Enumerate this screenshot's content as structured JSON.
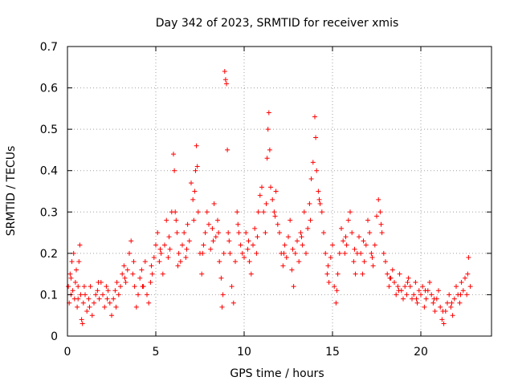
{
  "chart_data": {
    "type": "scatter",
    "title": "Day 342 of 2023, SRMTID for receiver xmis",
    "xlabel": "GPS time / hours",
    "ylabel": "SRMTID / TECUs",
    "xlim": [
      0,
      24.0
    ],
    "ylim": [
      0,
      0.7
    ],
    "xticks": [
      0,
      5,
      10,
      15,
      20
    ],
    "yticks": [
      0,
      0.1,
      0.2,
      0.3,
      0.4,
      0.5,
      0.6,
      0.7
    ],
    "grid": true,
    "marker": "plus",
    "color": "#ff0000",
    "series": [
      {
        "name": "SRMTID",
        "points": [
          [
            0.05,
            0.12
          ],
          [
            0.1,
            0.08
          ],
          [
            0.15,
            0.15
          ],
          [
            0.2,
            0.1
          ],
          [
            0.25,
            0.18
          ],
          [
            0.3,
            0.11
          ],
          [
            0.35,
            0.2
          ],
          [
            0.4,
            0.09
          ],
          [
            0.45,
            0.13
          ],
          [
            0.5,
            0.16
          ],
          [
            0.55,
            0.07
          ],
          [
            0.6,
            0.12
          ],
          [
            0.65,
            0.18
          ],
          [
            0.7,
            0.22
          ],
          [
            0.75,
            0.1
          ],
          [
            0.8,
            0.04
          ],
          [
            0.85,
            0.03
          ],
          [
            0.9,
            0.08
          ],
          [
            0.95,
            0.12
          ],
          [
            1.0,
            0.1
          ],
          [
            1.1,
            0.06
          ],
          [
            1.2,
            0.09
          ],
          [
            1.3,
            0.12
          ],
          [
            1.4,
            0.05
          ],
          [
            1.5,
            0.08
          ],
          [
            1.6,
            0.1
          ],
          [
            1.7,
            0.11
          ],
          [
            1.8,
            0.09
          ],
          [
            1.9,
            0.13
          ],
          [
            2.0,
            0.1
          ],
          [
            2.1,
            0.07
          ],
          [
            2.2,
            0.12
          ],
          [
            2.3,
            0.11
          ],
          [
            2.4,
            0.08
          ],
          [
            2.5,
            0.05
          ],
          [
            2.6,
            0.09
          ],
          [
            2.7,
            0.11
          ],
          [
            2.8,
            0.13
          ],
          [
            2.9,
            0.1
          ],
          [
            3.0,
            0.12
          ],
          [
            3.1,
            0.15
          ],
          [
            3.2,
            0.17
          ],
          [
            3.3,
            0.13
          ],
          [
            3.4,
            0.16
          ],
          [
            3.5,
            0.2
          ],
          [
            3.6,
            0.23
          ],
          [
            3.7,
            0.15
          ],
          [
            3.8,
            0.12
          ],
          [
            3.9,
            0.07
          ],
          [
            4.0,
            0.1
          ],
          [
            4.1,
            0.14
          ],
          [
            4.2,
            0.16
          ],
          [
            4.3,
            0.12
          ],
          [
            4.4,
            0.18
          ],
          [
            4.5,
            0.1
          ],
          [
            4.6,
            0.08
          ],
          [
            4.7,
            0.13
          ],
          [
            4.8,
            0.15
          ],
          [
            4.9,
            0.19
          ],
          [
            5.0,
            0.22
          ],
          [
            5.1,
            0.25
          ],
          [
            5.2,
            0.18
          ],
          [
            5.3,
            0.2
          ],
          [
            5.4,
            0.15
          ],
          [
            5.5,
            0.22
          ],
          [
            5.6,
            0.28
          ],
          [
            5.7,
            0.19
          ],
          [
            5.8,
            0.21
          ],
          [
            5.9,
            0.3
          ],
          [
            6.0,
            0.44
          ],
          [
            6.05,
            0.4
          ],
          [
            6.1,
            0.3
          ],
          [
            6.15,
            0.28
          ],
          [
            6.2,
            0.25
          ],
          [
            6.3,
            0.2
          ],
          [
            6.4,
            0.18
          ],
          [
            6.5,
            0.22
          ],
          [
            6.6,
            0.25
          ],
          [
            6.7,
            0.19
          ],
          [
            6.8,
            0.27
          ],
          [
            6.9,
            0.23
          ],
          [
            7.0,
            0.37
          ],
          [
            7.1,
            0.33
          ],
          [
            7.2,
            0.35
          ],
          [
            7.25,
            0.4
          ],
          [
            7.3,
            0.46
          ],
          [
            7.35,
            0.41
          ],
          [
            7.4,
            0.3
          ],
          [
            7.5,
            0.2
          ],
          [
            7.6,
            0.15
          ],
          [
            7.7,
            0.22
          ],
          [
            7.8,
            0.25
          ],
          [
            7.9,
            0.3
          ],
          [
            8.0,
            0.27
          ],
          [
            8.1,
            0.21
          ],
          [
            8.2,
            0.26
          ],
          [
            8.3,
            0.32
          ],
          [
            8.4,
            0.24
          ],
          [
            8.5,
            0.28
          ],
          [
            8.6,
            0.18
          ],
          [
            8.7,
            0.14
          ],
          [
            8.75,
            0.07
          ],
          [
            8.8,
            0.1
          ],
          [
            8.85,
            0.2
          ],
          [
            8.9,
            0.64
          ],
          [
            8.95,
            0.62
          ],
          [
            9.0,
            0.61
          ],
          [
            9.05,
            0.45
          ],
          [
            9.1,
            0.25
          ],
          [
            9.2,
            0.2
          ],
          [
            9.3,
            0.12
          ],
          [
            9.4,
            0.08
          ],
          [
            9.5,
            0.18
          ],
          [
            9.6,
            0.3
          ],
          [
            9.7,
            0.25
          ],
          [
            9.8,
            0.22
          ],
          [
            9.9,
            0.2
          ],
          [
            10.0,
            0.19
          ],
          [
            10.1,
            0.25
          ],
          [
            10.2,
            0.21
          ],
          [
            10.3,
            0.18
          ],
          [
            10.4,
            0.15
          ],
          [
            10.5,
            0.22
          ],
          [
            10.6,
            0.26
          ],
          [
            10.7,
            0.2
          ],
          [
            10.8,
            0.3
          ],
          [
            10.9,
            0.34
          ],
          [
            11.0,
            0.36
          ],
          [
            11.1,
            0.3
          ],
          [
            11.2,
            0.25
          ],
          [
            11.3,
            0.43
          ],
          [
            11.35,
            0.5
          ],
          [
            11.4,
            0.54
          ],
          [
            11.45,
            0.45
          ],
          [
            11.5,
            0.36
          ],
          [
            11.6,
            0.33
          ],
          [
            11.7,
            0.3
          ],
          [
            11.8,
            0.35
          ],
          [
            11.9,
            0.27
          ],
          [
            12.0,
            0.25
          ],
          [
            12.1,
            0.2
          ],
          [
            12.2,
            0.17
          ],
          [
            12.3,
            0.22
          ],
          [
            12.4,
            0.19
          ],
          [
            12.5,
            0.24
          ],
          [
            12.6,
            0.28
          ],
          [
            12.7,
            0.16
          ],
          [
            12.8,
            0.12
          ],
          [
            12.9,
            0.2
          ],
          [
            13.0,
            0.23
          ],
          [
            13.1,
            0.18
          ],
          [
            13.2,
            0.25
          ],
          [
            13.3,
            0.22
          ],
          [
            13.4,
            0.3
          ],
          [
            13.5,
            0.2
          ],
          [
            13.6,
            0.26
          ],
          [
            13.7,
            0.32
          ],
          [
            13.8,
            0.38
          ],
          [
            13.9,
            0.42
          ],
          [
            14.0,
            0.53
          ],
          [
            14.05,
            0.48
          ],
          [
            14.1,
            0.4
          ],
          [
            14.2,
            0.35
          ],
          [
            14.3,
            0.32
          ],
          [
            14.4,
            0.3
          ],
          [
            14.5,
            0.25
          ],
          [
            14.6,
            0.2
          ],
          [
            14.7,
            0.15
          ],
          [
            14.8,
            0.13
          ],
          [
            14.9,
            0.19
          ],
          [
            15.0,
            0.22
          ],
          [
            15.1,
            0.12
          ],
          [
            15.2,
            0.08
          ],
          [
            15.3,
            0.15
          ],
          [
            15.4,
            0.2
          ],
          [
            15.5,
            0.26
          ],
          [
            15.6,
            0.23
          ],
          [
            15.7,
            0.2
          ],
          [
            15.8,
            0.22
          ],
          [
            15.9,
            0.28
          ],
          [
            16.0,
            0.3
          ],
          [
            16.1,
            0.25
          ],
          [
            16.2,
            0.18
          ],
          [
            16.3,
            0.15
          ],
          [
            16.4,
            0.2
          ],
          [
            16.5,
            0.24
          ],
          [
            16.6,
            0.2
          ],
          [
            16.7,
            0.15
          ],
          [
            16.8,
            0.18
          ],
          [
            16.9,
            0.22
          ],
          [
            17.0,
            0.28
          ],
          [
            17.1,
            0.25
          ],
          [
            17.2,
            0.2
          ],
          [
            17.3,
            0.17
          ],
          [
            17.4,
            0.22
          ],
          [
            17.5,
            0.29
          ],
          [
            17.6,
            0.33
          ],
          [
            17.7,
            0.3
          ],
          [
            17.8,
            0.25
          ],
          [
            17.9,
            0.2
          ],
          [
            18.0,
            0.18
          ],
          [
            18.1,
            0.15
          ],
          [
            18.2,
            0.12
          ],
          [
            18.3,
            0.14
          ],
          [
            18.4,
            0.16
          ],
          [
            18.5,
            0.13
          ],
          [
            18.6,
            0.1
          ],
          [
            18.7,
            0.12
          ],
          [
            18.8,
            0.15
          ],
          [
            18.9,
            0.11
          ],
          [
            19.0,
            0.09
          ],
          [
            19.1,
            0.12
          ],
          [
            19.2,
            0.1
          ],
          [
            19.3,
            0.14
          ],
          [
            19.4,
            0.12
          ],
          [
            19.5,
            0.09
          ],
          [
            19.6,
            0.1
          ],
          [
            19.7,
            0.13
          ],
          [
            19.8,
            0.08
          ],
          [
            19.9,
            0.11
          ],
          [
            20.0,
            0.1
          ],
          [
            20.1,
            0.12
          ],
          [
            20.2,
            0.07
          ],
          [
            20.3,
            0.09
          ],
          [
            20.4,
            0.11
          ],
          [
            20.5,
            0.13
          ],
          [
            20.6,
            0.1
          ],
          [
            20.7,
            0.08
          ],
          [
            20.8,
            0.06
          ],
          [
            20.9,
            0.09
          ],
          [
            21.0,
            0.11
          ],
          [
            21.1,
            0.07
          ],
          [
            21.2,
            0.04
          ],
          [
            21.3,
            0.03
          ],
          [
            21.4,
            0.06
          ],
          [
            21.5,
            0.08
          ],
          [
            21.6,
            0.1
          ],
          [
            21.7,
            0.07
          ],
          [
            21.8,
            0.05
          ],
          [
            21.9,
            0.09
          ],
          [
            22.0,
            0.12
          ],
          [
            22.1,
            0.1
          ],
          [
            22.2,
            0.08
          ],
          [
            22.3,
            0.13
          ],
          [
            22.4,
            0.11
          ],
          [
            22.5,
            0.14
          ],
          [
            22.6,
            0.1
          ],
          [
            22.7,
            0.19
          ],
          [
            22.8,
            0.12
          ],
          [
            0.2,
            0.14
          ],
          [
            0.6,
            0.09
          ],
          [
            1.25,
            0.07
          ],
          [
            1.75,
            0.13
          ],
          [
            2.25,
            0.09
          ],
          [
            2.75,
            0.07
          ],
          [
            3.25,
            0.14
          ],
          [
            3.75,
            0.18
          ],
          [
            4.25,
            0.12
          ],
          [
            4.75,
            0.17
          ],
          [
            5.25,
            0.21
          ],
          [
            5.75,
            0.24
          ],
          [
            6.25,
            0.17
          ],
          [
            6.75,
            0.21
          ],
          [
            7.15,
            0.28
          ],
          [
            7.65,
            0.2
          ],
          [
            8.25,
            0.23
          ],
          [
            8.55,
            0.25
          ],
          [
            9.15,
            0.23
          ],
          [
            9.65,
            0.27
          ],
          [
            10.25,
            0.23
          ],
          [
            10.75,
            0.24
          ],
          [
            11.25,
            0.32
          ],
          [
            11.75,
            0.29
          ],
          [
            12.25,
            0.2
          ],
          [
            12.75,
            0.21
          ],
          [
            13.25,
            0.24
          ],
          [
            13.75,
            0.28
          ],
          [
            14.25,
            0.33
          ],
          [
            14.75,
            0.17
          ],
          [
            15.25,
            0.11
          ],
          [
            15.75,
            0.24
          ],
          [
            16.25,
            0.21
          ],
          [
            16.75,
            0.23
          ],
          [
            17.25,
            0.19
          ],
          [
            17.75,
            0.27
          ],
          [
            18.25,
            0.14
          ],
          [
            18.75,
            0.11
          ],
          [
            19.25,
            0.13
          ],
          [
            19.75,
            0.09
          ],
          [
            20.25,
            0.11
          ],
          [
            20.75,
            0.09
          ],
          [
            21.25,
            0.06
          ],
          [
            21.75,
            0.08
          ],
          [
            22.25,
            0.1
          ],
          [
            22.65,
            0.15
          ]
        ]
      }
    ]
  }
}
